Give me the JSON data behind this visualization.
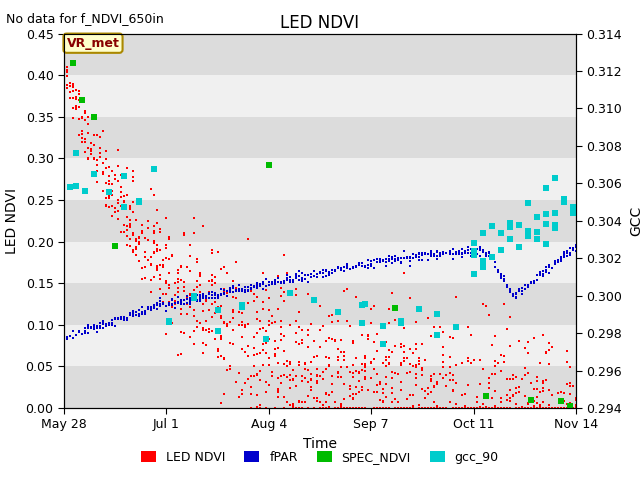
{
  "title": "LED NDVI",
  "subtitle": "No data for f_NDVI_650in",
  "xlabel": "Time",
  "ylabel_left": "LED NDVI",
  "ylabel_right": "GCC",
  "annotation": "VR_met",
  "ylim_left": [
    0.0,
    0.45
  ],
  "ylim_right": [
    0.294,
    0.314
  ],
  "yticks_left": [
    0.0,
    0.05,
    0.1,
    0.15,
    0.2,
    0.25,
    0.3,
    0.35,
    0.4,
    0.45
  ],
  "yticks_right": [
    0.294,
    0.296,
    0.298,
    0.3,
    0.302,
    0.304,
    0.306,
    0.308,
    0.31,
    0.312,
    0.314
  ],
  "colors": {
    "LED_NDVI": "#FF0000",
    "fPAR": "#0000CC",
    "SPEC_NDVI": "#00BB00",
    "gcc_90": "#00CCCC",
    "background_dark": "#DCDCDC",
    "background_light": "#F0F0F0",
    "annotation_bg": "#FFFFCC",
    "annotation_border": "#AA8800",
    "annotation_text": "#880000"
  },
  "xtick_labels": [
    "May 28",
    "Jul 1",
    "Aug 4",
    "Sep 7",
    "Oct 11",
    "Nov 14"
  ],
  "xtick_days": [
    0,
    34,
    68,
    102,
    136,
    170
  ],
  "legend_labels": [
    "LED NDVI",
    "fPAR",
    "SPEC_NDVI",
    "gcc_90"
  ],
  "total_days": 170,
  "figsize": [
    6.4,
    4.8
  ],
  "dpi": 100
}
